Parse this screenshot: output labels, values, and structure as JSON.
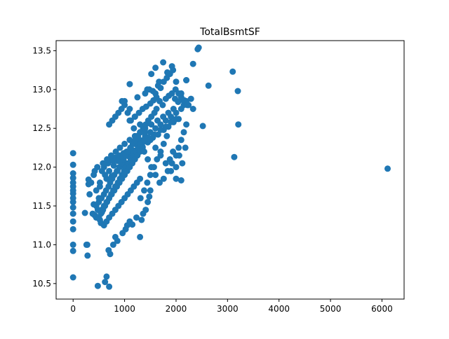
{
  "chart_data": {
    "type": "scatter",
    "title": "TotalBsmtSF",
    "xlabel": "",
    "ylabel": "",
    "xlim": [
      -330,
      6430
    ],
    "ylim": [
      10.3,
      13.63
    ],
    "x_ticks": [
      0,
      1000,
      2000,
      3000,
      4000,
      5000,
      6000
    ],
    "y_ticks": [
      10.5,
      11.0,
      11.5,
      12.0,
      12.5,
      13.0,
      13.5
    ],
    "marker_color": "#1f77b4",
    "grid": false,
    "legend": "none",
    "series": [
      {
        "x": [
          0,
          0,
          0,
          0,
          0,
          0,
          0,
          0,
          0,
          0,
          0,
          0,
          0,
          0,
          0,
          0,
          0,
          230,
          260,
          275,
          300,
          280,
          320,
          300,
          350,
          380,
          400,
          420,
          450,
          480,
          500,
          520,
          540,
          560,
          480,
          620,
          650,
          690,
          700,
          720,
          780,
          820,
          860,
          960,
          1020,
          1050,
          1100,
          1150,
          1230,
          1300,
          1330,
          1360,
          1410,
          1450,
          1480,
          1500,
          400,
          450,
          520,
          560,
          600,
          650,
          680,
          720,
          750,
          780,
          820,
          860,
          900,
          950,
          980,
          1000,
          1040,
          1080,
          1120,
          1160,
          1200,
          1240,
          1290,
          1350,
          1400,
          1450,
          1500,
          1550,
          1600,
          1650,
          1700,
          1760,
          1800,
          1850,
          1900,
          1950,
          2000,
          2050,
          2100,
          2150,
          2200,
          420,
          470,
          520,
          580,
          620,
          660,
          700,
          740,
          790,
          830,
          870,
          910,
          960,
          1000,
          1050,
          1100,
          1150,
          1200,
          1250,
          1300,
          1350,
          1400,
          1460,
          1520,
          1580,
          1640,
          1700,
          1750,
          1800,
          1850,
          1900,
          1950,
          2000,
          450,
          500,
          550,
          600,
          640,
          690,
          720,
          760,
          800,
          850,
          900,
          940,
          980,
          1020,
          1060,
          1110,
          1160,
          1210,
          1260,
          1310,
          1360,
          1410,
          1460,
          1520,
          1580,
          1620,
          500,
          540,
          580,
          620,
          660,
          700,
          740,
          780,
          820,
          870,
          910,
          950,
          990,
          1030,
          1070,
          1120,
          1170,
          1220,
          1270,
          1320,
          1370,
          550,
          600,
          650,
          700,
          750,
          800,
          850,
          900,
          950,
          1000,
          1050,
          1100,
          1150,
          1200,
          1250,
          1300,
          1350,
          600,
          650,
          700,
          760,
          820,
          880,
          940,
          1000,
          1060,
          1120,
          1180,
          1240,
          1300,
          700,
          760,
          820,
          880,
          940,
          1000,
          1060,
          1120,
          1180,
          1240,
          1300,
          1380,
          1450,
          1520,
          1600,
          1680,
          1760,
          1840,
          1920,
          2000,
          2050,
          2100,
          2150,
          2200,
          1000,
          1100,
          1250,
          1400,
          1480,
          1550,
          1600,
          1650,
          1700,
          1760,
          1820,
          1880,
          1940,
          1990,
          2050,
          2100,
          2150,
          2200,
          2240,
          2290,
          2330,
          1100,
          1200,
          1280,
          1350,
          1420,
          1500,
          1560,
          1620,
          1680,
          1740,
          1800,
          1860,
          1920,
          1980,
          2040,
          2100,
          2160,
          2220,
          1310,
          1380,
          1440,
          1500,
          1570,
          1630,
          1700,
          1760,
          1820,
          1880,
          1940,
          2000,
          2060,
          2120,
          2180,
          1440,
          1520,
          1600,
          1670,
          1750,
          1830,
          1920,
          2000,
          2100,
          2200,
          2330,
          2420,
          2440,
          2520,
          2630,
          3100,
          3130,
          3200,
          3210,
          6110,
          950,
          1100,
          1200,
          1300,
          1400,
          1500,
          1600,
          1700,
          1800,
          1900,
          2000,
          2100
        ],
        "y": [
          10.58,
          10.92,
          11.2,
          11.3,
          11.4,
          11.48,
          11.55,
          11.6,
          11.66,
          11.7,
          11.75,
          11.8,
          11.86,
          11.92,
          12.03,
          12.18,
          11.0,
          11.41,
          11.0,
          11.0,
          11.78,
          10.86,
          11.65,
          11.84,
          11.8,
          11.4,
          11.52,
          11.38,
          11.35,
          11.45,
          11.6,
          11.32,
          11.28,
          11.42,
          10.47,
          10.52,
          10.59,
          10.93,
          10.46,
          10.88,
          11.0,
          11.1,
          11.05,
          11.15,
          11.2,
          11.25,
          11.3,
          11.26,
          11.35,
          11.1,
          11.32,
          11.4,
          11.45,
          11.55,
          11.62,
          11.7,
          11.9,
          11.7,
          11.75,
          11.95,
          12.0,
          11.85,
          12.05,
          12.1,
          11.88,
          12.08,
          12.12,
          11.95,
          12.15,
          12.02,
          12.18,
          12.06,
          12.2,
          12.14,
          12.25,
          12.18,
          12.3,
          12.22,
          12.35,
          12.26,
          12.4,
          12.32,
          12.45,
          12.38,
          12.5,
          12.42,
          12.55,
          12.48,
          12.6,
          12.52,
          12.65,
          12.58,
          12.7,
          12.62,
          12.75,
          12.8,
          12.85,
          11.95,
          12.0,
          11.8,
          12.05,
          11.9,
          12.1,
          11.95,
          12.15,
          12.02,
          12.2,
          12.08,
          12.25,
          12.12,
          12.3,
          12.18,
          12.35,
          12.22,
          12.4,
          12.28,
          12.45,
          12.32,
          12.5,
          12.38,
          12.55,
          12.42,
          12.6,
          12.48,
          12.65,
          12.52,
          12.7,
          12.58,
          12.75,
          12.62,
          11.5,
          11.55,
          11.6,
          11.65,
          11.7,
          11.75,
          11.8,
          11.85,
          11.9,
          11.95,
          12.0,
          12.05,
          12.1,
          12.15,
          12.2,
          12.25,
          12.3,
          12.35,
          12.4,
          12.45,
          12.5,
          12.55,
          12.6,
          12.65,
          12.7,
          12.75,
          11.35,
          11.4,
          11.45,
          11.5,
          11.55,
          11.6,
          11.65,
          11.7,
          11.75,
          11.8,
          11.85,
          11.9,
          11.95,
          12.0,
          12.05,
          12.1,
          12.15,
          12.2,
          12.25,
          12.3,
          12.35,
          11.45,
          11.5,
          11.55,
          11.6,
          11.65,
          11.7,
          11.75,
          11.8,
          11.85,
          11.9,
          11.95,
          12.0,
          12.05,
          12.1,
          12.15,
          12.2,
          12.25,
          11.25,
          11.3,
          11.35,
          11.4,
          11.45,
          11.5,
          11.55,
          11.6,
          11.65,
          11.7,
          11.75,
          11.8,
          11.85,
          12.55,
          12.6,
          12.65,
          12.7,
          12.75,
          12.8,
          12.7,
          12.6,
          12.5,
          12.4,
          12.3,
          12.2,
          12.1,
          12.0,
          11.9,
          11.8,
          11.85,
          11.95,
          12.05,
          12.15,
          12.25,
          12.35,
          12.45,
          12.55,
          12.85,
          13.07,
          12.9,
          12.95,
          13.0,
          12.98,
          12.95,
          13.05,
          13.02,
          13.1,
          13.15,
          13.2,
          13.25,
          13.0,
          12.95,
          12.9,
          12.85,
          13.12,
          12.8,
          12.88,
          12.75,
          12.6,
          12.65,
          12.7,
          12.75,
          12.78,
          12.82,
          12.86,
          12.9,
          12.85,
          12.8,
          12.88,
          12.92,
          12.95,
          12.88,
          12.84,
          12.9,
          12.86,
          12.8,
          11.6,
          11.7,
          11.8,
          11.9,
          12.0,
          12.1,
          12.2,
          12.3,
          12.4,
          12.1,
          12.2,
          12.0,
          12.15,
          12.05,
          12.25,
          13.0,
          13.2,
          13.28,
          13.1,
          13.35,
          13.22,
          13.3,
          13.1,
          12.95,
          13.12,
          13.33,
          13.52,
          13.54,
          12.53,
          13.05,
          13.23,
          12.13,
          12.98,
          12.55,
          11.98,
          12.85,
          12.75,
          12.65,
          12.55,
          12.45,
          12.35,
          12.25,
          12.15,
          12.05,
          11.95,
          11.85,
          11.83
        ]
      }
    ]
  }
}
